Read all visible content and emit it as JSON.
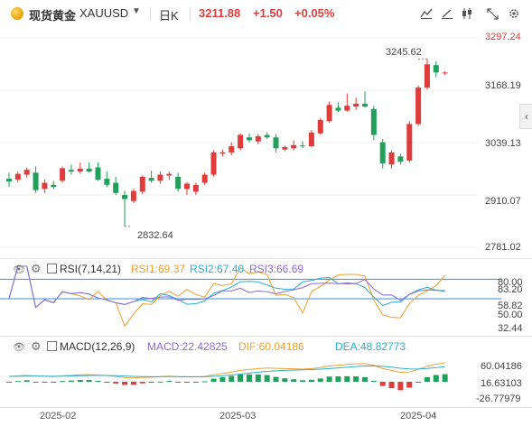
{
  "header": {
    "name": "现货黄金",
    "symbol": "XAUUSD",
    "interval": "日K",
    "price": "3211.88",
    "change": "+1.50",
    "change_pct": "+0.05%",
    "colors": {
      "up": "#e03c3c",
      "down": "#21a05a",
      "gold": "#e6a400"
    },
    "icons": [
      "coin-icon",
      "caret-down-icon",
      "indicator-icon",
      "draw-icon",
      "candle-type-icon",
      "fullscreen-icon",
      "settings-icon"
    ]
  },
  "price_axis": [
    "3297.24",
    "3168.19",
    "3039.13",
    "2910.07",
    "2781.02"
  ],
  "annotations": {
    "high": "3245.62",
    "low": "2832.64"
  },
  "rsi": {
    "title": "RSI(7,14,21)",
    "rsi1": "RSI1:69.37",
    "rsi2": "RSI2:67.40",
    "rsi3": "RSI3:66.69",
    "axis": [
      "80.00",
      "83.20",
      "58.82",
      "50.00",
      "32.44"
    ],
    "colors": {
      "rsi1": "#f0a030",
      "rsi2": "#2ab0d0",
      "rsi3": "#8a6bd8"
    }
  },
  "macd": {
    "title": "MACD(12,26,9)",
    "macd": "MACD:22.42825",
    "dif": "DIF:60.04186",
    "dea": "DEA:48.82773",
    "axis": [
      "60.04186",
      "16.63103",
      "-26.77979"
    ],
    "colors": {
      "macd": "#8a6bd8",
      "dif": "#f0a030",
      "dea": "#2ab0d0"
    }
  },
  "dates": [
    "2025-02",
    "2025-03",
    "2025-04"
  ],
  "chart_data": {
    "type": "candlestick",
    "ylim": [
      2781.02,
      3297.24
    ],
    "candles": [
      {
        "o": 2950,
        "h": 2965,
        "l": 2930,
        "c": 2943
      },
      {
        "o": 2948,
        "h": 2968,
        "l": 2941,
        "c": 2962
      },
      {
        "o": 2960,
        "h": 2978,
        "l": 2952,
        "c": 2972
      },
      {
        "o": 2965,
        "h": 2980,
        "l": 2915,
        "c": 2922
      },
      {
        "o": 2925,
        "h": 2948,
        "l": 2915,
        "c": 2940
      },
      {
        "o": 2935,
        "h": 2945,
        "l": 2925,
        "c": 2930
      },
      {
        "o": 2945,
        "h": 2980,
        "l": 2940,
        "c": 2976
      },
      {
        "o": 2972,
        "h": 2985,
        "l": 2960,
        "c": 2968
      },
      {
        "o": 2968,
        "h": 2990,
        "l": 2962,
        "c": 2975
      },
      {
        "o": 2975,
        "h": 2990,
        "l": 2965,
        "c": 2968
      },
      {
        "o": 2978,
        "h": 2990,
        "l": 2945,
        "c": 2948
      },
      {
        "o": 2950,
        "h": 2968,
        "l": 2930,
        "c": 2935
      },
      {
        "o": 2940,
        "h": 2955,
        "l": 2910,
        "c": 2915
      },
      {
        "o": 2910,
        "h": 2920,
        "l": 2832.64,
        "c": 2900
      },
      {
        "o": 2895,
        "h": 2925,
        "l": 2890,
        "c": 2920
      },
      {
        "o": 2918,
        "h": 2958,
        "l": 2912,
        "c": 2955
      },
      {
        "o": 2952,
        "h": 2970,
        "l": 2940,
        "c": 2945
      },
      {
        "o": 2945,
        "h": 2968,
        "l": 2938,
        "c": 2960
      },
      {
        "o": 2958,
        "h": 2968,
        "l": 2948,
        "c": 2962
      },
      {
        "o": 2955,
        "h": 2965,
        "l": 2918,
        "c": 2925
      },
      {
        "o": 2925,
        "h": 2942,
        "l": 2910,
        "c": 2938
      },
      {
        "o": 2918,
        "h": 2940,
        "l": 2910,
        "c": 2935
      },
      {
        "o": 2940,
        "h": 2965,
        "l": 2935,
        "c": 2960
      },
      {
        "o": 2960,
        "h": 3020,
        "l": 2955,
        "c": 3015
      },
      {
        "o": 3012,
        "h": 3022,
        "l": 3005,
        "c": 3015
      },
      {
        "o": 3015,
        "h": 3040,
        "l": 3008,
        "c": 3030
      },
      {
        "o": 3025,
        "h": 3062,
        "l": 3020,
        "c": 3058
      },
      {
        "o": 3052,
        "h": 3062,
        "l": 3040,
        "c": 3045
      },
      {
        "o": 3042,
        "h": 3060,
        "l": 3035,
        "c": 3055
      },
      {
        "o": 3058,
        "h": 3065,
        "l": 3048,
        "c": 3052
      },
      {
        "o": 3052,
        "h": 3060,
        "l": 3015,
        "c": 3025
      },
      {
        "o": 3022,
        "h": 3032,
        "l": 3018,
        "c": 3028
      },
      {
        "o": 3025,
        "h": 3045,
        "l": 3020,
        "c": 3033
      },
      {
        "o": 3032,
        "h": 3042,
        "l": 3025,
        "c": 3030
      },
      {
        "o": 3030,
        "h": 3070,
        "l": 3028,
        "c": 3064
      },
      {
        "o": 3062,
        "h": 3100,
        "l": 3058,
        "c": 3095
      },
      {
        "o": 3092,
        "h": 3140,
        "l": 3088,
        "c": 3132
      },
      {
        "o": 3125,
        "h": 3138,
        "l": 3115,
        "c": 3118
      },
      {
        "o": 3118,
        "h": 3160,
        "l": 3115,
        "c": 3130
      },
      {
        "o": 3128,
        "h": 3150,
        "l": 3120,
        "c": 3135
      },
      {
        "o": 3135,
        "h": 3165,
        "l": 3125,
        "c": 3128
      },
      {
        "o": 3122,
        "h": 3130,
        "l": 3045,
        "c": 3058
      },
      {
        "o": 3040,
        "h": 3048,
        "l": 2975,
        "c": 2988
      },
      {
        "o": 2985,
        "h": 3020,
        "l": 2975,
        "c": 3015
      },
      {
        "o": 3005,
        "h": 3012,
        "l": 2985,
        "c": 2992
      },
      {
        "o": 2995,
        "h": 3092,
        "l": 2990,
        "c": 3085
      },
      {
        "o": 3085,
        "h": 3180,
        "l": 3080,
        "c": 3175
      },
      {
        "o": 3175,
        "h": 3245.62,
        "l": 3170,
        "c": 3232
      },
      {
        "o": 3230,
        "h": 3240,
        "l": 3200,
        "c": 3212
      },
      {
        "o": 3210,
        "h": 3215,
        "l": 3206,
        "c": 3211.88
      }
    ]
  }
}
